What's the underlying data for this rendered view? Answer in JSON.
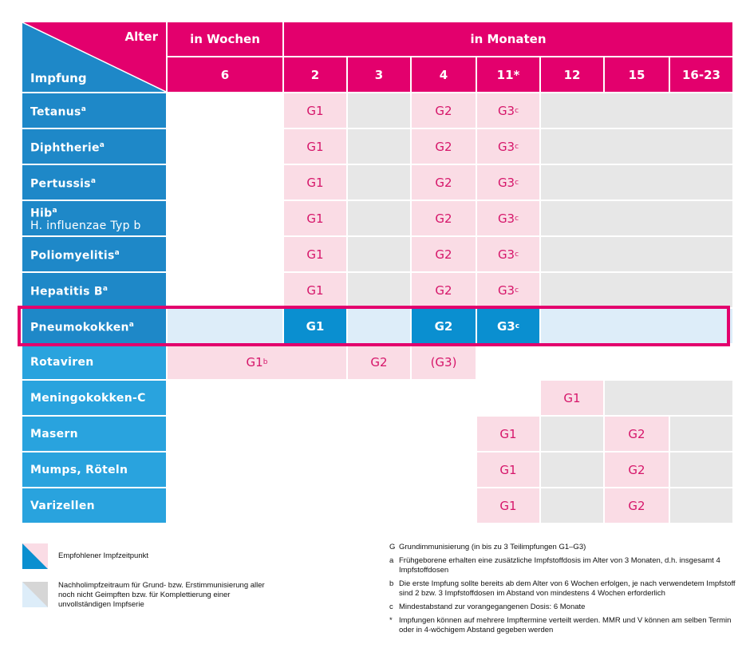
{
  "header": {
    "alter": "Alter",
    "impfung": "Impfung",
    "weeks_group": "in Wochen",
    "months_group": "in Monaten",
    "ages": [
      "6",
      "2",
      "3",
      "4",
      "11*",
      "12",
      "15",
      "16-23"
    ]
  },
  "rows": [
    {
      "name": "Tetanus",
      "sup": "a",
      "cells": [
        [
          "w",
          ""
        ],
        [
          "p",
          "G1"
        ],
        [
          "g",
          ""
        ],
        [
          "p",
          "G2"
        ],
        [
          "p",
          "G3",
          "c"
        ],
        [
          "g",
          ""
        ]
      ]
    },
    {
      "name": "Diphtherie",
      "sup": "a",
      "cells": [
        [
          "w",
          ""
        ],
        [
          "p",
          "G1"
        ],
        [
          "g",
          ""
        ],
        [
          "p",
          "G2"
        ],
        [
          "p",
          "G3",
          "c"
        ],
        [
          "g",
          ""
        ]
      ]
    },
    {
      "name": "Pertussis",
      "sup": "a",
      "cells": [
        [
          "w",
          ""
        ],
        [
          "p",
          "G1"
        ],
        [
          "g",
          ""
        ],
        [
          "p",
          "G2"
        ],
        [
          "p",
          "G3",
          "c"
        ],
        [
          "g",
          ""
        ]
      ]
    },
    {
      "name": "Hib",
      "sup": "a",
      "sub": "H. influenzae Typ b",
      "cells": [
        [
          "w",
          ""
        ],
        [
          "p",
          "G1"
        ],
        [
          "g",
          ""
        ],
        [
          "p",
          "G2"
        ],
        [
          "p",
          "G3",
          "c"
        ],
        [
          "g",
          ""
        ]
      ]
    },
    {
      "name": "Poliomyelitis",
      "sup": "a",
      "cells": [
        [
          "w",
          ""
        ],
        [
          "p",
          "G1"
        ],
        [
          "g",
          ""
        ],
        [
          "p",
          "G2"
        ],
        [
          "p",
          "G3",
          "c"
        ],
        [
          "g",
          ""
        ]
      ]
    },
    {
      "name": "Hepatitis B",
      "sup": "a",
      "cells": [
        [
          "w",
          ""
        ],
        [
          "p",
          "G1"
        ],
        [
          "g",
          ""
        ],
        [
          "p",
          "G2"
        ],
        [
          "p",
          "G3",
          "c"
        ],
        [
          "g",
          ""
        ]
      ]
    },
    {
      "name": "Pneumokokken",
      "sup": "a",
      "cells": [
        [
          "l",
          ""
        ],
        [
          "b",
          "G1"
        ],
        [
          "l",
          ""
        ],
        [
          "b",
          "G2"
        ],
        [
          "b",
          "G3",
          "c"
        ],
        [
          "l",
          ""
        ]
      ]
    },
    {
      "name": "Rotaviren",
      "sup": "",
      "cells": [
        [
          "p",
          "G1",
          "b"
        ],
        [
          "p",
          "G2"
        ],
        [
          "p",
          "(G3)"
        ],
        [
          "w",
          ""
        ]
      ]
    },
    {
      "name": "Meningokokken-C",
      "sup": "",
      "cells": [
        [
          "w",
          ""
        ],
        [
          "p",
          "G1"
        ],
        [
          "g",
          ""
        ]
      ]
    },
    {
      "name": "Masern",
      "sup": "",
      "cells": [
        [
          "w",
          ""
        ],
        [
          "p",
          "G1"
        ],
        [
          "g",
          ""
        ],
        [
          "p",
          "G2"
        ],
        [
          "g",
          ""
        ]
      ]
    },
    {
      "name": "Mumps, Röteln",
      "sup": "",
      "cells": [
        [
          "w",
          ""
        ],
        [
          "p",
          "G1"
        ],
        [
          "g",
          ""
        ],
        [
          "p",
          "G2"
        ],
        [
          "g",
          ""
        ]
      ]
    },
    {
      "name": "Varizellen",
      "sup": "",
      "cells": [
        [
          "w",
          ""
        ],
        [
          "p",
          "G1"
        ],
        [
          "g",
          ""
        ],
        [
          "p",
          "G2"
        ],
        [
          "g",
          ""
        ]
      ]
    }
  ],
  "legend": {
    "recommended": "Empfohlener Impfzeitpunkt",
    "catchup": "Nachholimpfzeitraum für Grund- bzw. Erstimmunisierung aller noch nicht Geimpften bzw. für Komplettierung einer unvollständigen Impfserie"
  },
  "footnotes": [
    {
      "key": "G",
      "text": "Grundimmunisierung (in bis zu 3 Teilimpfungen G1–G3)"
    },
    {
      "key": "a",
      "text": "Frühgeborene erhalten eine zusätzliche Impfstoffdosis im Alter von 3 Monaten, d.h. insgesamt 4 Impfstoffdosen"
    },
    {
      "key": "b",
      "text": "Die erste Impfung sollte bereits ab dem Alter von 6 Wochen erfolgen, je nach verwendetem Impfstoff sind 2 bzw. 3 Impfstoffdosen im Abstand von mindestens 4 Wochen erforderlich"
    },
    {
      "key": "c",
      "text": "Mindestabstand zur vorangegangenen Dosis: 6 Monate"
    },
    {
      "key": "*",
      "text": "Impfungen können auf mehrere Impftermine verteilt werden. MMR und V können am selben Termin oder in 4-wöchigem Abstand gegeben werden"
    }
  ]
}
